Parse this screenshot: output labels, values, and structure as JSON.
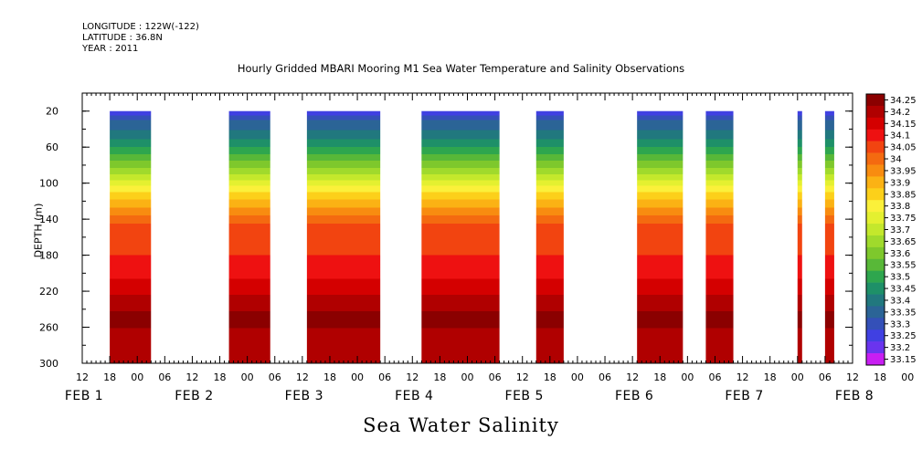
{
  "header": {
    "longitude": "LONGITUDE : 122W(-122)",
    "latitude": "LATITUDE : 36.8N",
    "year": "YEAR : 2011"
  },
  "chart_data": {
    "type": "heatmap",
    "title": "Hourly Gridded MBARI Mooring M1 Sea Water Temperature and Salinity Observations",
    "xlabel": "Sea Water Salinity",
    "ylabel": "DEPTH (m)",
    "ylim": [
      300,
      0
    ],
    "y_ticks": [
      20,
      60,
      100,
      140,
      180,
      220,
      260,
      300
    ],
    "x_hour_ticks": [
      "12",
      "18",
      "00",
      "06",
      "12",
      "18",
      "00",
      "06",
      "12",
      "18",
      "00",
      "06",
      "12",
      "18",
      "00",
      "06",
      "12",
      "18",
      "00",
      "06",
      "12",
      "18",
      "00",
      "06",
      "12",
      "18",
      "00",
      "06",
      "12",
      "18",
      "00",
      "06",
      "12"
    ],
    "x_day_labels": [
      "FEB 1",
      "FEB 2",
      "FEB 3",
      "FEB 4",
      "FEB 5",
      "FEB 6",
      "FEB 7",
      "FEB 8"
    ],
    "colorbar": {
      "levels": [
        "34.25",
        "34.2",
        "34.15",
        "34.1",
        "34.05",
        "34",
        "33.95",
        "33.9",
        "33.85",
        "33.8",
        "33.75",
        "33.7",
        "33.65",
        "33.6",
        "33.55",
        "33.5",
        "33.45",
        "33.4",
        "33.35",
        "33.3",
        "33.25",
        "33.2",
        "33.15"
      ],
      "colors": [
        "#8b0000",
        "#b00000",
        "#d40000",
        "#ee1111",
        "#f24410",
        "#f46a10",
        "#f88c10",
        "#fbb214",
        "#fcd01a",
        "#fbf03a",
        "#e4f030",
        "#c4e82c",
        "#a0da2c",
        "#7ec82c",
        "#58b838",
        "#2ea64e",
        "#1e9068",
        "#21787e",
        "#2b6496",
        "#3450b8",
        "#4040e2",
        "#6a34ee",
        "#c81ef2"
      ]
    },
    "data_segments": [
      {
        "start_day": 1,
        "start_hour": 18,
        "end_day": 2,
        "end_hour": 3
      },
      {
        "start_day": 2,
        "start_hour": 20,
        "end_day": 3,
        "end_hour": 5
      },
      {
        "start_day": 3,
        "start_hour": 13,
        "end_day": 4,
        "end_hour": 5
      },
      {
        "start_day": 4,
        "start_hour": 14,
        "end_day": 5,
        "end_hour": 7
      },
      {
        "start_day": 5,
        "start_hour": 15,
        "end_day": 5,
        "end_hour": 21
      },
      {
        "start_day": 6,
        "start_hour": 13,
        "end_day": 6,
        "end_hour": 23
      },
      {
        "start_day": 7,
        "start_hour": 4,
        "end_day": 7,
        "end_hour": 10
      },
      {
        "start_day": 8,
        "start_hour": 0,
        "end_day": 8,
        "end_hour": 1
      },
      {
        "start_day": 8,
        "start_hour": 6,
        "end_day": 8,
        "end_hour": 8
      }
    ],
    "salinity_profile": [
      {
        "depth": 20,
        "value": 33.2
      },
      {
        "depth": 30,
        "value": 33.3
      },
      {
        "depth": 45,
        "value": 33.37
      },
      {
        "depth": 60,
        "value": 33.45
      },
      {
        "depth": 75,
        "value": 33.55
      },
      {
        "depth": 90,
        "value": 33.65
      },
      {
        "depth": 105,
        "value": 33.77
      },
      {
        "depth": 118,
        "value": 33.85
      },
      {
        "depth": 130,
        "value": 33.92
      },
      {
        "depth": 145,
        "value": 34.0
      },
      {
        "depth": 180,
        "value": 34.05
      },
      {
        "depth": 215,
        "value": 34.12
      },
      {
        "depth": 230,
        "value": 34.17
      },
      {
        "depth": 250,
        "value": 34.22
      },
      {
        "depth": 275,
        "value": 34.17
      },
      {
        "depth": 300,
        "value": 34.15
      }
    ]
  }
}
